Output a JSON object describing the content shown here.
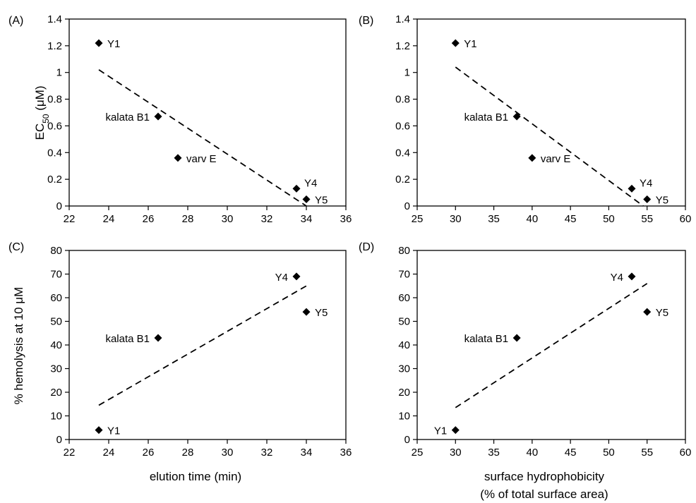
{
  "figure": {
    "row2_ylabel": "% hemolysis at 10 μM",
    "x_title_left": "elution time (min)",
    "x_title_right_line1": "surface hydrophobicity",
    "x_title_right_line2": "(% of total surface area)"
  },
  "chart_data": [
    {
      "panel": "(A)",
      "type": "scatter",
      "xlim": [
        22,
        36
      ],
      "ylim": [
        0,
        1.4
      ],
      "xticks": [
        "22",
        "24",
        "26",
        "28",
        "30",
        "32",
        "34",
        "36"
      ],
      "yticks": [
        "0",
        "0.2",
        "0.4",
        "0.6",
        "0.8",
        "1",
        "1.2",
        "1.4"
      ],
      "ylabel_main": "EC",
      "ylabel_sub": "50",
      "ylabel_rest": " (μM)",
      "points": [
        {
          "label": "Y1",
          "x": 23.5,
          "y": 1.22,
          "label_side": "right"
        },
        {
          "label": "kalata B1",
          "x": 26.5,
          "y": 0.67,
          "label_side": "left"
        },
        {
          "label": "varv E",
          "x": 27.5,
          "y": 0.36,
          "label_side": "right"
        },
        {
          "label": "Y4",
          "x": 33.5,
          "y": 0.13,
          "label_side": "upright"
        },
        {
          "label": "Y5",
          "x": 34.0,
          "y": 0.05,
          "label_side": "right"
        }
      ],
      "trend": [
        [
          23.5,
          1.02
        ],
        [
          34.0,
          0.0
        ]
      ]
    },
    {
      "panel": "(B)",
      "type": "scatter",
      "xlim": [
        25,
        60
      ],
      "ylim": [
        0,
        1.4
      ],
      "xticks": [
        "25",
        "30",
        "35",
        "40",
        "45",
        "50",
        "55",
        "60"
      ],
      "yticks": [
        "0",
        "0.2",
        "0.4",
        "0.6",
        "0.8",
        "1",
        "1.2",
        "1.4"
      ],
      "points": [
        {
          "label": "Y1",
          "x": 30,
          "y": 1.22,
          "label_side": "right"
        },
        {
          "label": "kalata B1",
          "x": 38,
          "y": 0.67,
          "label_side": "left"
        },
        {
          "label": "varv E",
          "x": 40,
          "y": 0.36,
          "label_side": "right"
        },
        {
          "label": "Y4",
          "x": 53,
          "y": 0.13,
          "label_side": "upright"
        },
        {
          "label": "Y5",
          "x": 55,
          "y": 0.05,
          "label_side": "right"
        }
      ],
      "trend": [
        [
          30,
          1.04
        ],
        [
          54.5,
          0.0
        ]
      ]
    },
    {
      "panel": "(C)",
      "type": "scatter",
      "xlim": [
        22,
        36
      ],
      "ylim": [
        0,
        80
      ],
      "xticks": [
        "22",
        "24",
        "26",
        "28",
        "30",
        "32",
        "34",
        "36"
      ],
      "yticks": [
        "0",
        "10",
        "20",
        "30",
        "40",
        "50",
        "60",
        "70",
        "80"
      ],
      "points": [
        {
          "label": "Y1",
          "x": 23.5,
          "y": 4,
          "label_side": "right"
        },
        {
          "label": "kalata B1",
          "x": 26.5,
          "y": 43,
          "label_side": "left"
        },
        {
          "label": "Y4",
          "x": 33.5,
          "y": 69,
          "label_side": "left"
        },
        {
          "label": "Y5",
          "x": 34.0,
          "y": 54,
          "label_side": "right"
        }
      ],
      "trend": [
        [
          23.5,
          14.5
        ],
        [
          34.0,
          65
        ]
      ]
    },
    {
      "panel": "(D)",
      "type": "scatter",
      "xlim": [
        25,
        60
      ],
      "ylim": [
        0,
        80
      ],
      "xticks": [
        "25",
        "30",
        "35",
        "40",
        "45",
        "50",
        "55",
        "60"
      ],
      "yticks": [
        "0",
        "10",
        "20",
        "30",
        "40",
        "50",
        "60",
        "70",
        "80"
      ],
      "points": [
        {
          "label": "Y1",
          "x": 30,
          "y": 4,
          "label_side": "left"
        },
        {
          "label": "kalata B1",
          "x": 38,
          "y": 43,
          "label_side": "left"
        },
        {
          "label": "Y4",
          "x": 53,
          "y": 69,
          "label_side": "left"
        },
        {
          "label": "Y5",
          "x": 55,
          "y": 54,
          "label_side": "right"
        }
      ],
      "trend": [
        [
          30,
          13.5
        ],
        [
          55,
          66
        ]
      ]
    }
  ]
}
